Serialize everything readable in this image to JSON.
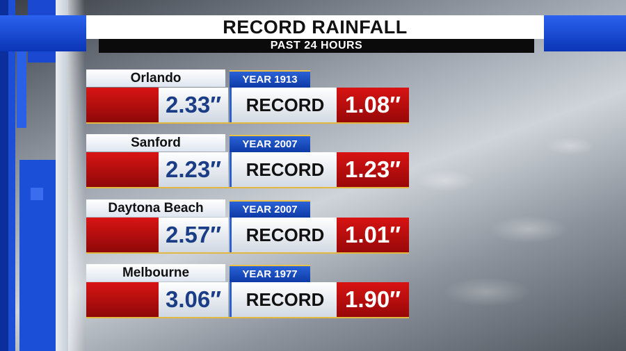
{
  "header": {
    "title": "RECORD RAINFALL",
    "subtitle": "PAST 24 HOURS"
  },
  "colors": {
    "brand_blue": "#1d4fd6",
    "record_red": "#c81010",
    "amount_text": "#1b3d86",
    "accent_gold": "#e2b93e"
  },
  "rows": [
    {
      "city": "Orlando",
      "amount": "2.33″",
      "year": "YEAR 1913",
      "record_label": "RECORD",
      "record_value": "1.08″"
    },
    {
      "city": "Sanford",
      "amount": "2.23″",
      "year": "YEAR 2007",
      "record_label": "RECORD",
      "record_value": "1.23″"
    },
    {
      "city": "Daytona Beach",
      "amount": "2.57″",
      "year": "YEAR 2007",
      "record_label": "RECORD",
      "record_value": "1.01″"
    },
    {
      "city": "Melbourne",
      "amount": "3.06″",
      "year": "YEAR 1977",
      "record_label": "RECORD",
      "record_value": "1.90″"
    }
  ]
}
